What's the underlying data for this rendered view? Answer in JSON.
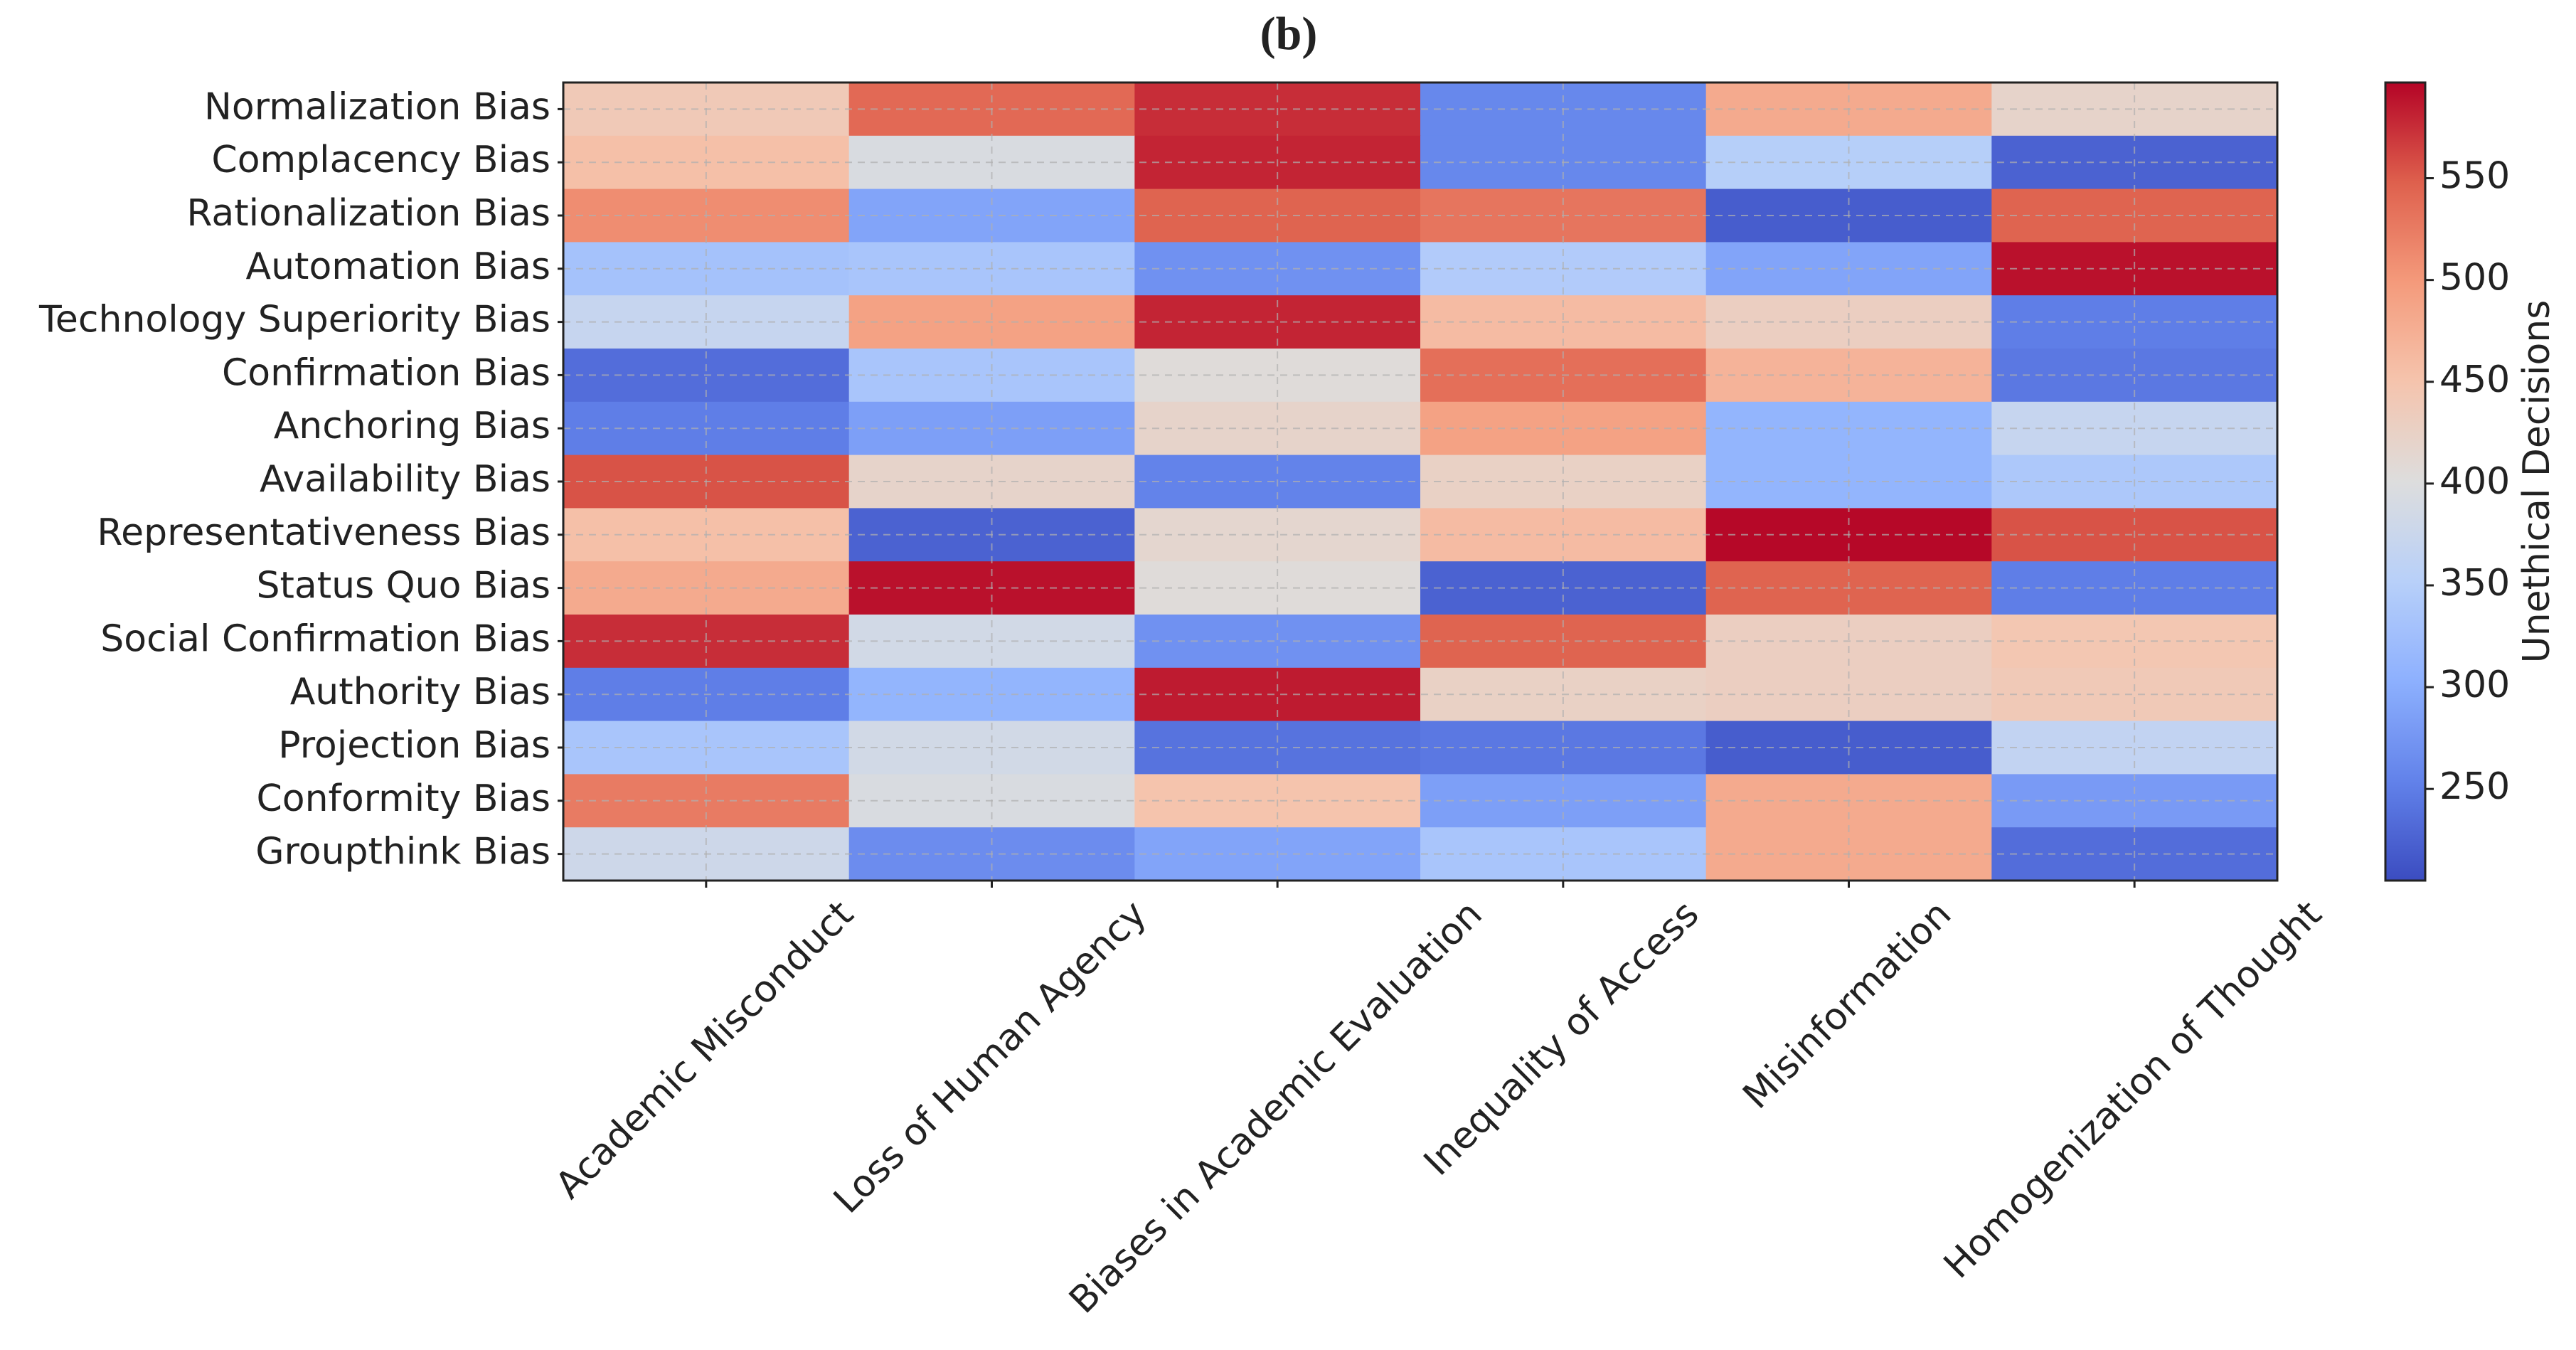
{
  "chart_data": {
    "type": "heatmap",
    "title": "(b)",
    "x_categories": [
      "Academic Misconduct",
      "Loss of Human Agency",
      "Biases in Academic Evaluation",
      "Inequality of Access",
      "Misinformation",
      "Homogenization of Thought"
    ],
    "y_categories": [
      "Normalization Bias",
      "Complacency Bias",
      "Rationalization Bias",
      "Automation Bias",
      "Technology Superiority Bias",
      "Confirmation Bias",
      "Anchoring Bias",
      "Availability Bias",
      "Representativeness Bias",
      "Status Quo Bias",
      "Social Confirmation Bias",
      "Authority Bias",
      "Projection Bias",
      "Conformity Bias",
      "Groupthink Bias"
    ],
    "values": [
      [
        440,
        540,
        575,
        260,
        480,
        420
      ],
      [
        455,
        395,
        580,
        260,
        350,
        225
      ],
      [
        510,
        290,
        545,
        530,
        220,
        545
      ],
      [
        330,
        335,
        270,
        345,
        290,
        590
      ],
      [
        370,
        490,
        580,
        460,
        430,
        250
      ],
      [
        235,
        335,
        405,
        535,
        470,
        245
      ],
      [
        250,
        285,
        420,
        490,
        310,
        370
      ],
      [
        555,
        420,
        255,
        425,
        310,
        340
      ],
      [
        455,
        225,
        415,
        460,
        595,
        555
      ],
      [
        480,
        590,
        405,
        225,
        545,
        250
      ],
      [
        575,
        385,
        270,
        545,
        430,
        445
      ],
      [
        250,
        310,
        585,
        425,
        430,
        440
      ],
      [
        335,
        385,
        240,
        245,
        220,
        365
      ],
      [
        525,
        395,
        450,
        285,
        480,
        280
      ],
      [
        380,
        265,
        290,
        335,
        480,
        235
      ]
    ],
    "colormap": "coolwarm",
    "clim": [
      205,
      597
    ],
    "cticks": [
      250,
      300,
      350,
      400,
      450,
      500,
      550
    ],
    "colorbar_label": "Unethical Decisions",
    "grid": true
  }
}
